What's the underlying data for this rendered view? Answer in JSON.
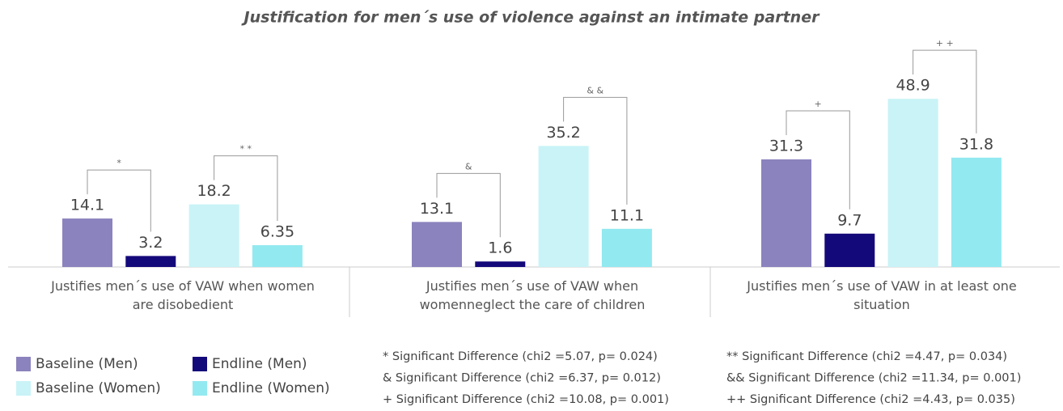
{
  "chart_data": {
    "type": "bar",
    "title": "Justification for men´s use of violence against an intimate partner",
    "categories": [
      "Justifies men´s use of VAW when women are disobedient",
      "Justifies men´s use of VAW when womenneglect the care of children",
      "Justifies men´s use of VAW in at least one situation"
    ],
    "series": [
      {
        "name": "Baseline (Men)",
        "color": "#8b83bd",
        "values": [
          14.1,
          13.1,
          31.3
        ]
      },
      {
        "name": "Endline (Men)",
        "color": "#14097a",
        "values": [
          3.2,
          1.6,
          9.7
        ]
      },
      {
        "name": "Baseline (Women)",
        "color": "#c9f3f7",
        "values": [
          18.2,
          35.2,
          48.9
        ]
      },
      {
        "name": "Endline (Women)",
        "color": "#93e9f0",
        "values": [
          6.35,
          11.1,
          31.8
        ]
      }
    ],
    "brackets": [
      [
        "*",
        "* *"
      ],
      [
        "&",
        "& &"
      ],
      [
        "+",
        "+ +"
      ]
    ],
    "footnotes": [
      "* Significant Difference (chi2 =5.07, p= 0.024)",
      "& Significant Difference (chi2 =6.37, p= 0.012)",
      "+ Significant Difference (chi2 =10.08, p= 0.001)",
      "** Significant Difference (chi2 =4.47, p= 0.034)",
      "&& Significant Difference (chi2 =11.34, p= 0.001)",
      "++ Significant Difference (chi2 =4.43, p= 0.035)"
    ]
  }
}
